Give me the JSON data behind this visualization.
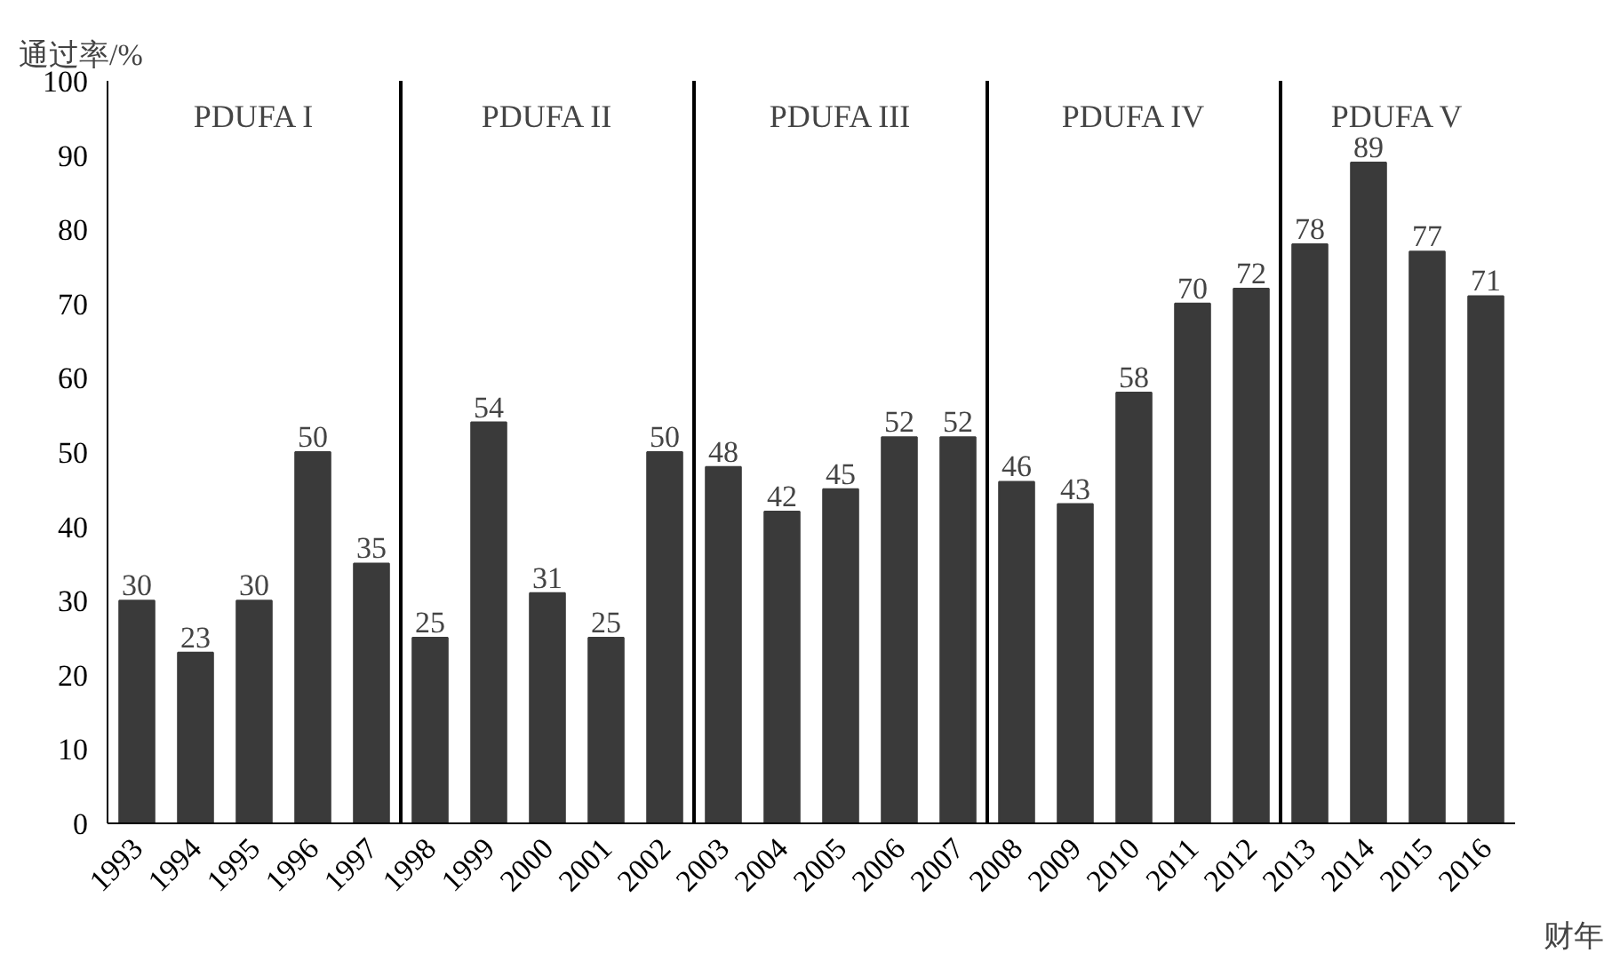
{
  "chart_data": {
    "type": "bar",
    "xlabel": "财年",
    "ylabel": "通过率/%",
    "x": [
      1993,
      1994,
      1995,
      1996,
      1997,
      1998,
      1999,
      2000,
      2001,
      2002,
      2003,
      2004,
      2005,
      2006,
      2007,
      2008,
      2009,
      2010,
      2011,
      2012,
      2013,
      2014,
      2015,
      2016
    ],
    "values": [
      30,
      23,
      30,
      50,
      35,
      25,
      54,
      31,
      25,
      50,
      48,
      42,
      45,
      52,
      52,
      46,
      43,
      58,
      70,
      72,
      78,
      89,
      77,
      71
    ],
    "color": "#3a3a3a",
    "xlim": [
      1992.5,
      2016.5
    ],
    "xticks": [
      1993,
      1994,
      1995,
      1996,
      1997,
      1998,
      1999,
      2000,
      2001,
      2002,
      2003,
      2004,
      2005,
      2006,
      2007,
      2008,
      2009,
      2010,
      2011,
      2012,
      2013,
      2014,
      2015,
      2016
    ],
    "ylim": [
      0,
      100
    ],
    "yticks": [
      0,
      10,
      20,
      30,
      40,
      50,
      60,
      70,
      80,
      90,
      100
    ],
    "data_labels": true,
    "grid": false,
    "ref_lines": [
      {
        "axis": "x",
        "value": 1997.5,
        "color": "#000000",
        "line_style": "solid"
      },
      {
        "axis": "x",
        "value": 2002.5,
        "color": "#000000",
        "line_style": "solid"
      },
      {
        "axis": "x",
        "value": 2007.5,
        "color": "#000000",
        "line_style": "solid"
      },
      {
        "axis": "x",
        "value": 2012.5,
        "color": "#000000",
        "line_style": "solid"
      }
    ],
    "annotations": [
      "PDUFA I",
      "PDUFA II",
      "PDUFA III",
      "PDUFA IV",
      "PDUFA V"
    ]
  }
}
